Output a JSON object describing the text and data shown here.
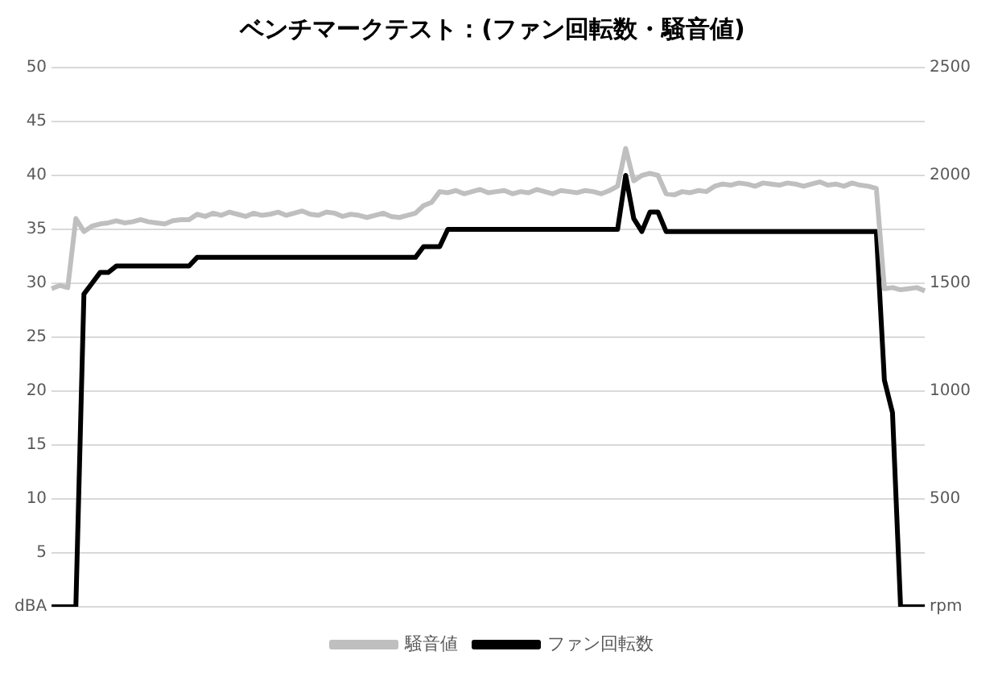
{
  "chart_data": {
    "type": "line",
    "title": "ベンチマークテスト：(ファン回転数・騒音値)",
    "categories": [
      null,
      null,
      null,
      null,
      null,
      null,
      null,
      null,
      null,
      null,
      null,
      null,
      null,
      null,
      null,
      null,
      null,
      null,
      null,
      null,
      null,
      null,
      null,
      null,
      null,
      null,
      null,
      null,
      null,
      null,
      null,
      null,
      null,
      null,
      null,
      null,
      null,
      null,
      null,
      null,
      null,
      null,
      null,
      null,
      null,
      null,
      null,
      null,
      null,
      null,
      null,
      null,
      null,
      null,
      null,
      null,
      null,
      null,
      null,
      null,
      null,
      null,
      null,
      null,
      null,
      null,
      null,
      null,
      null,
      null,
      null,
      null,
      null,
      null,
      null,
      null,
      null,
      null,
      null,
      null,
      null,
      null,
      null,
      null,
      null,
      null,
      null,
      null,
      null,
      null,
      null,
      null,
      null,
      null,
      null,
      null,
      null,
      null,
      null,
      null,
      null,
      null,
      null,
      null,
      null,
      null,
      null,
      null,
      null
    ],
    "series": [
      {
        "name": "騒音値",
        "color": "#bfbfbf",
        "values": [
          29.5,
          29.8,
          29.6,
          36,
          34.8,
          35.3,
          35.5,
          35.6,
          35.8,
          35.6,
          35.7,
          35.9,
          35.7,
          35.6,
          35.5,
          35.8,
          35.9,
          35.9,
          36.4,
          36.2,
          36.5,
          36.3,
          36.6,
          36.4,
          36.2,
          36.5,
          36.3,
          36.4,
          36.6,
          36.3,
          36.5,
          36.7,
          36.4,
          36.3,
          36.6,
          36.5,
          36.2,
          36.4,
          36.3,
          36.1,
          36.3,
          36.5,
          36.2,
          36.1,
          36.3,
          36.5,
          37.2,
          37.5,
          38.5,
          38.4,
          38.6,
          38.3,
          38.5,
          38.7,
          38.4,
          38.5,
          38.6,
          38.3,
          38.5,
          38.4,
          38.7,
          38.5,
          38.3,
          38.6,
          38.5,
          38.4,
          38.6,
          38.5,
          38.3,
          38.6,
          39,
          42.5,
          39.5,
          40,
          40.2,
          40,
          38.3,
          38.2,
          38.5,
          38.4,
          38.6,
          38.5,
          39,
          39.2,
          39.1,
          39.3,
          39.2,
          39,
          39.3,
          39.2,
          39.1,
          39.3,
          39.2,
          39,
          39.2,
          39.4,
          39.1,
          39.2,
          39,
          39.3,
          39.1,
          39,
          38.8,
          29.5,
          29.6,
          29.4,
          29.5,
          29.6,
          29.3
        ]
      },
      {
        "name": "ファン回転数",
        "color": "#000000",
        "axis": "y2",
        "values": [
          0,
          0,
          0,
          0,
          1450,
          1500,
          1550,
          1550,
          1580,
          1580,
          1580,
          1580,
          1580,
          1580,
          1580,
          1580,
          1580,
          1580,
          1620,
          1620,
          1620,
          1620,
          1620,
          1620,
          1620,
          1620,
          1620,
          1620,
          1620,
          1620,
          1620,
          1620,
          1620,
          1620,
          1620,
          1620,
          1620,
          1620,
          1620,
          1620,
          1620,
          1620,
          1620,
          1620,
          1620,
          1620,
          1670,
          1670,
          1670,
          1750,
          1750,
          1750,
          1750,
          1750,
          1750,
          1750,
          1750,
          1750,
          1750,
          1750,
          1750,
          1750,
          1750,
          1750,
          1750,
          1750,
          1750,
          1750,
          1750,
          1750,
          1750,
          2000,
          1800,
          1740,
          1830,
          1830,
          1740,
          1740,
          1740,
          1740,
          1740,
          1740,
          1740,
          1740,
          1740,
          1740,
          1740,
          1740,
          1740,
          1740,
          1740,
          1740,
          1740,
          1740,
          1740,
          1740,
          1740,
          1740,
          1740,
          1740,
          1740,
          1740,
          1740,
          1050,
          900,
          0,
          0,
          0,
          0
        ]
      }
    ],
    "ylim": [
      0,
      50
    ],
    "yticks": [
      {
        "value": 0,
        "label": "dBA"
      },
      5,
      10,
      15,
      20,
      25,
      30,
      35,
      40,
      45,
      50
    ],
    "y2lim": [
      0,
      2500
    ],
    "y2ticks": [
      {
        "value": 0,
        "label": "rpm"
      },
      500,
      1000,
      1500,
      2000,
      2500
    ],
    "grid": "y",
    "legend": "bottom",
    "marker": "none",
    "line_style": "solid",
    "tick_labels": "y"
  }
}
